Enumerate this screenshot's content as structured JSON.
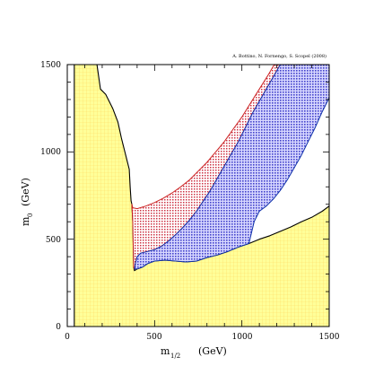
{
  "chart_data": {
    "type": "area",
    "credit": "A. Bottino, N. Fornengo, S. Scopel (2008)",
    "xlabel": {
      "main": "m",
      "sub": "1/2",
      "unit": "(GeV)"
    },
    "ylabel": {
      "main": "m",
      "sub": "0",
      "unit": "(GeV)"
    },
    "xlim": [
      0,
      1500
    ],
    "ylim": [
      0,
      1500
    ],
    "xticks": [
      "0",
      "500",
      "1000",
      "1500"
    ],
    "yticks": [
      "0",
      "500",
      "1000",
      "1500"
    ],
    "grid": false,
    "regions": [
      {
        "fill": "#ffff99",
        "outline": "#000000",
        "points": [
          [
            40,
            0
          ],
          [
            40,
            1500
          ],
          [
            170,
            1500
          ],
          [
            190,
            1360
          ],
          [
            220,
            1330
          ],
          [
            260,
            1250
          ],
          [
            290,
            1170
          ],
          [
            310,
            1080
          ],
          [
            330,
            1000
          ],
          [
            355,
            900
          ],
          [
            360,
            800
          ],
          [
            365,
            720
          ],
          [
            370,
            700
          ],
          [
            375,
            600
          ],
          [
            378,
            450
          ],
          [
            380,
            340
          ],
          [
            385,
            320
          ],
          [
            400,
            330
          ],
          [
            430,
            340
          ],
          [
            460,
            360
          ],
          [
            500,
            375
          ],
          [
            560,
            380
          ],
          [
            620,
            375
          ],
          [
            680,
            370
          ],
          [
            740,
            375
          ],
          [
            800,
            395
          ],
          [
            860,
            410
          ],
          [
            920,
            430
          ],
          [
            980,
            455
          ],
          [
            1040,
            475
          ],
          [
            1100,
            500
          ],
          [
            1160,
            520
          ],
          [
            1220,
            545
          ],
          [
            1280,
            570
          ],
          [
            1340,
            600
          ],
          [
            1400,
            625
          ],
          [
            1460,
            660
          ],
          [
            1500,
            690
          ],
          [
            1500,
            0
          ]
        ]
      },
      {
        "fill": "#cc3344",
        "outline": "#cc2222",
        "points": [
          [
            370,
            700
          ],
          [
            375,
            680
          ],
          [
            400,
            675
          ],
          [
            450,
            690
          ],
          [
            500,
            710
          ],
          [
            550,
            735
          ],
          [
            600,
            765
          ],
          [
            650,
            800
          ],
          [
            700,
            840
          ],
          [
            750,
            890
          ],
          [
            800,
            940
          ],
          [
            850,
            1000
          ],
          [
            900,
            1060
          ],
          [
            950,
            1130
          ],
          [
            1000,
            1200
          ],
          [
            1050,
            1280
          ],
          [
            1100,
            1360
          ],
          [
            1150,
            1440
          ],
          [
            1185,
            1500
          ],
          [
            1220,
            1500
          ],
          [
            1180,
            1430
          ],
          [
            1140,
            1360
          ],
          [
            1100,
            1290
          ],
          [
            1060,
            1220
          ],
          [
            1020,
            1140
          ],
          [
            980,
            1060
          ],
          [
            940,
            990
          ],
          [
            900,
            920
          ],
          [
            860,
            850
          ],
          [
            820,
            780
          ],
          [
            780,
            720
          ],
          [
            740,
            660
          ],
          [
            700,
            610
          ],
          [
            660,
            565
          ],
          [
            620,
            525
          ],
          [
            580,
            490
          ],
          [
            540,
            460
          ],
          [
            500,
            440
          ],
          [
            460,
            430
          ],
          [
            420,
            420
          ],
          [
            400,
            400
          ],
          [
            390,
            360
          ],
          [
            385,
            330
          ],
          [
            380,
            340
          ],
          [
            378,
            450
          ],
          [
            375,
            600
          ]
        ]
      },
      {
        "fill": "#5555dd",
        "outline": "#1133aa",
        "points": [
          [
            385,
            330
          ],
          [
            390,
            360
          ],
          [
            400,
            400
          ],
          [
            420,
            420
          ],
          [
            460,
            430
          ],
          [
            500,
            440
          ],
          [
            540,
            460
          ],
          [
            580,
            490
          ],
          [
            620,
            525
          ],
          [
            660,
            565
          ],
          [
            700,
            610
          ],
          [
            740,
            660
          ],
          [
            780,
            720
          ],
          [
            820,
            780
          ],
          [
            860,
            850
          ],
          [
            900,
            920
          ],
          [
            940,
            990
          ],
          [
            980,
            1060
          ],
          [
            1020,
            1140
          ],
          [
            1060,
            1220
          ],
          [
            1100,
            1290
          ],
          [
            1140,
            1360
          ],
          [
            1180,
            1430
          ],
          [
            1220,
            1500
          ],
          [
            1500,
            1500
          ],
          [
            1500,
            1310
          ],
          [
            1460,
            1230
          ],
          [
            1420,
            1140
          ],
          [
            1380,
            1060
          ],
          [
            1340,
            980
          ],
          [
            1300,
            910
          ],
          [
            1260,
            840
          ],
          [
            1220,
            780
          ],
          [
            1180,
            730
          ],
          [
            1140,
            690
          ],
          [
            1100,
            660
          ],
          [
            1070,
            600
          ],
          [
            1040,
            475
          ],
          [
            980,
            455
          ],
          [
            920,
            430
          ],
          [
            860,
            410
          ],
          [
            800,
            395
          ],
          [
            740,
            375
          ],
          [
            680,
            370
          ],
          [
            620,
            375
          ],
          [
            560,
            380
          ],
          [
            500,
            375
          ],
          [
            460,
            360
          ],
          [
            430,
            340
          ],
          [
            400,
            330
          ]
        ]
      }
    ],
    "colors": {
      "yellow": "#ffff99",
      "red": "#dd2222",
      "blue": "#2233cc",
      "black": "#000000"
    }
  }
}
